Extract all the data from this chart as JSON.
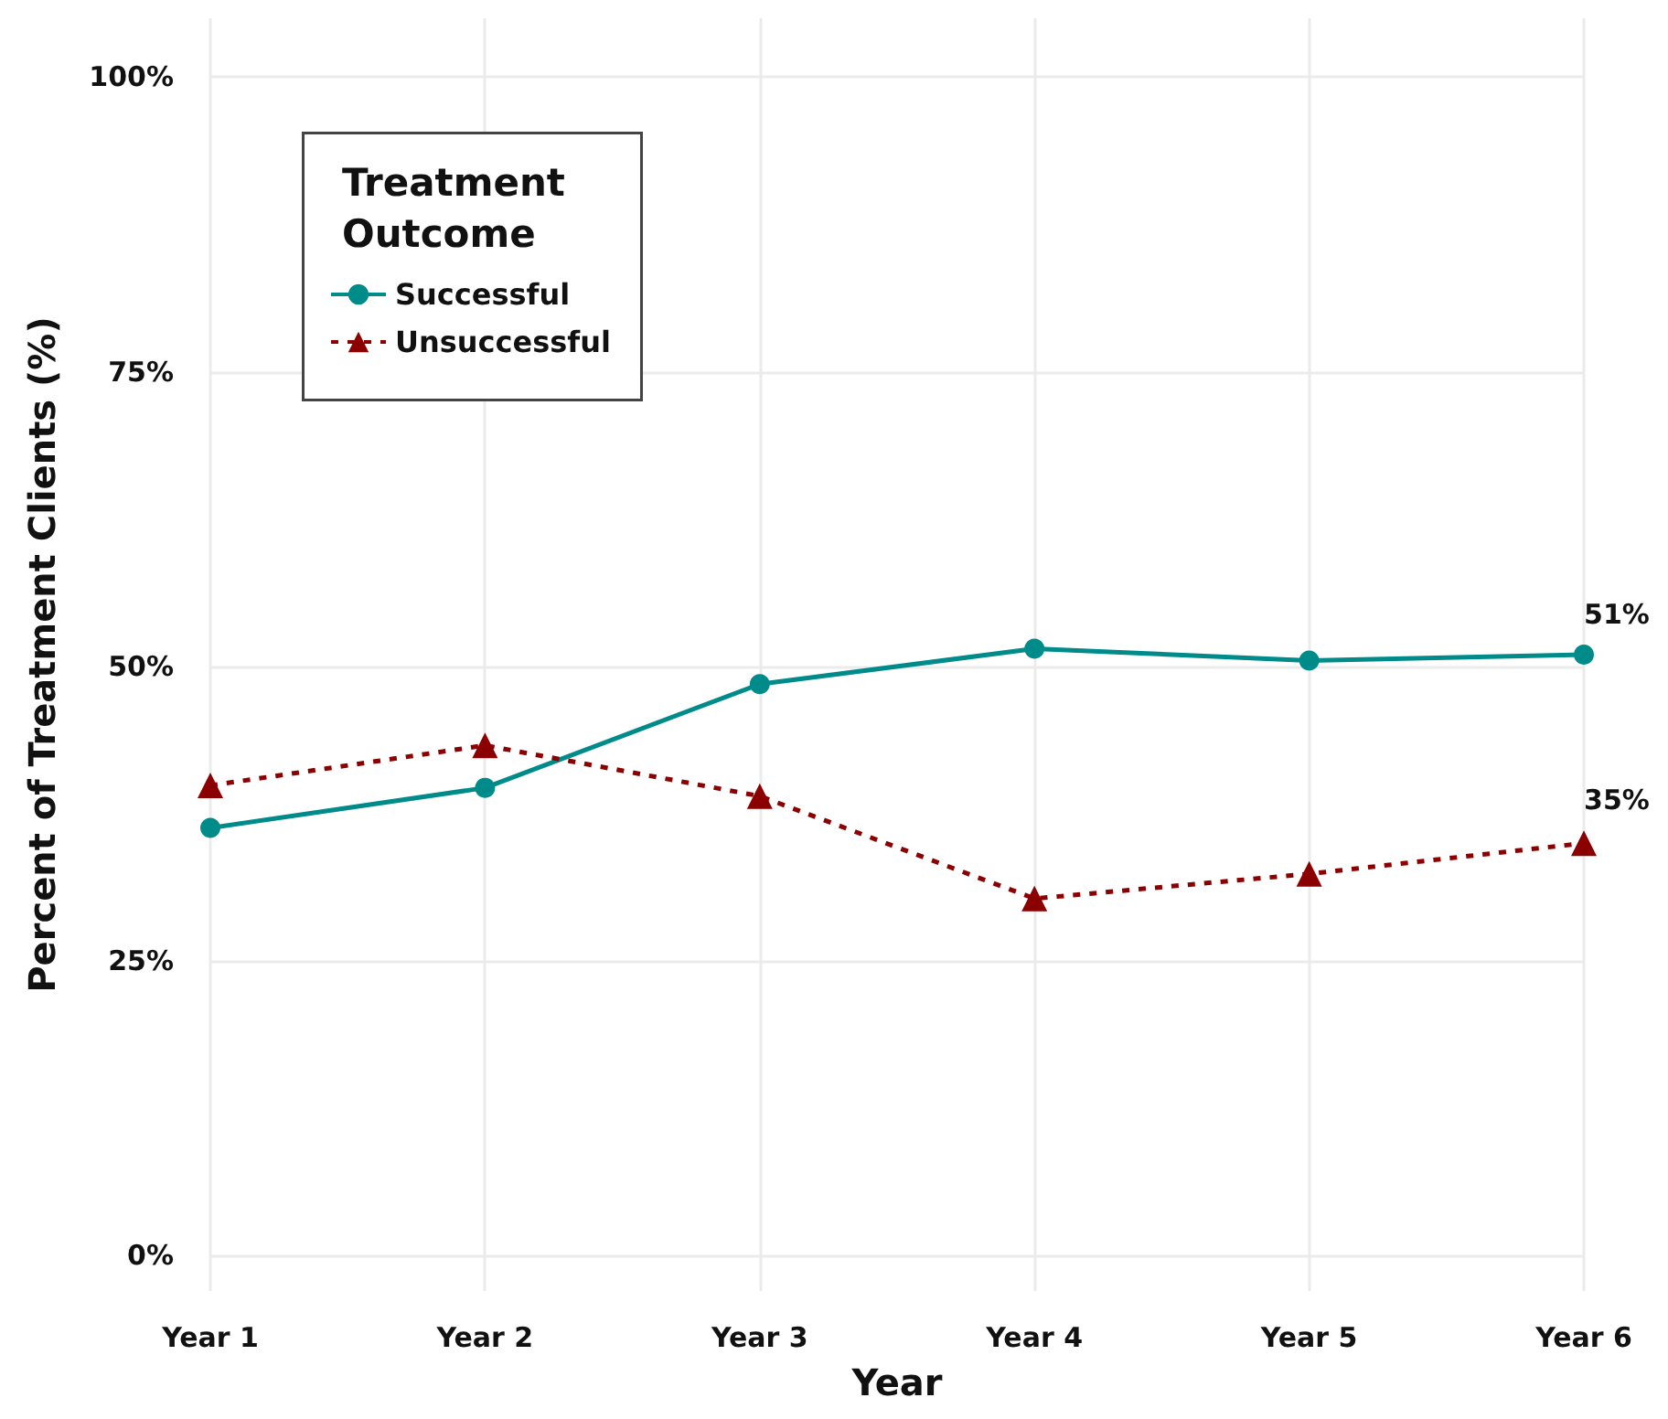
{
  "chart_data": {
    "type": "line",
    "xlabel": "Year",
    "ylabel": "Percent of Treatment Clients (%)",
    "legend_title": "Treatment Outcome",
    "categories": [
      "Year 1",
      "Year 2",
      "Year 3",
      "Year 4",
      "Year 5",
      "Year 6"
    ],
    "series": [
      {
        "name": "Successful",
        "color": "#008b8b",
        "marker": "circle",
        "line_style": "solid",
        "values": [
          36.3,
          39.7,
          48.5,
          51.5,
          50.5,
          51
        ],
        "value_labels": [
          null,
          null,
          null,
          null,
          null,
          "51%"
        ]
      },
      {
        "name": "Unsuccessful",
        "color": "#8b0000",
        "marker": "triangle",
        "line_style": "dashed",
        "values": [
          39.9,
          43.3,
          39,
          30.3,
          32.4,
          35
        ],
        "value_labels": [
          null,
          null,
          null,
          null,
          null,
          "35%"
        ]
      }
    ],
    "ylim": [
      -3,
      105
    ],
    "yticks": [
      {
        "value": 0,
        "label": "0%"
      },
      {
        "value": 25,
        "label": "25%"
      },
      {
        "value": 50,
        "label": "50%"
      },
      {
        "value": 75,
        "label": "75%"
      },
      {
        "value": 100,
        "label": "100%"
      }
    ],
    "grid": true,
    "legend": "top left"
  }
}
